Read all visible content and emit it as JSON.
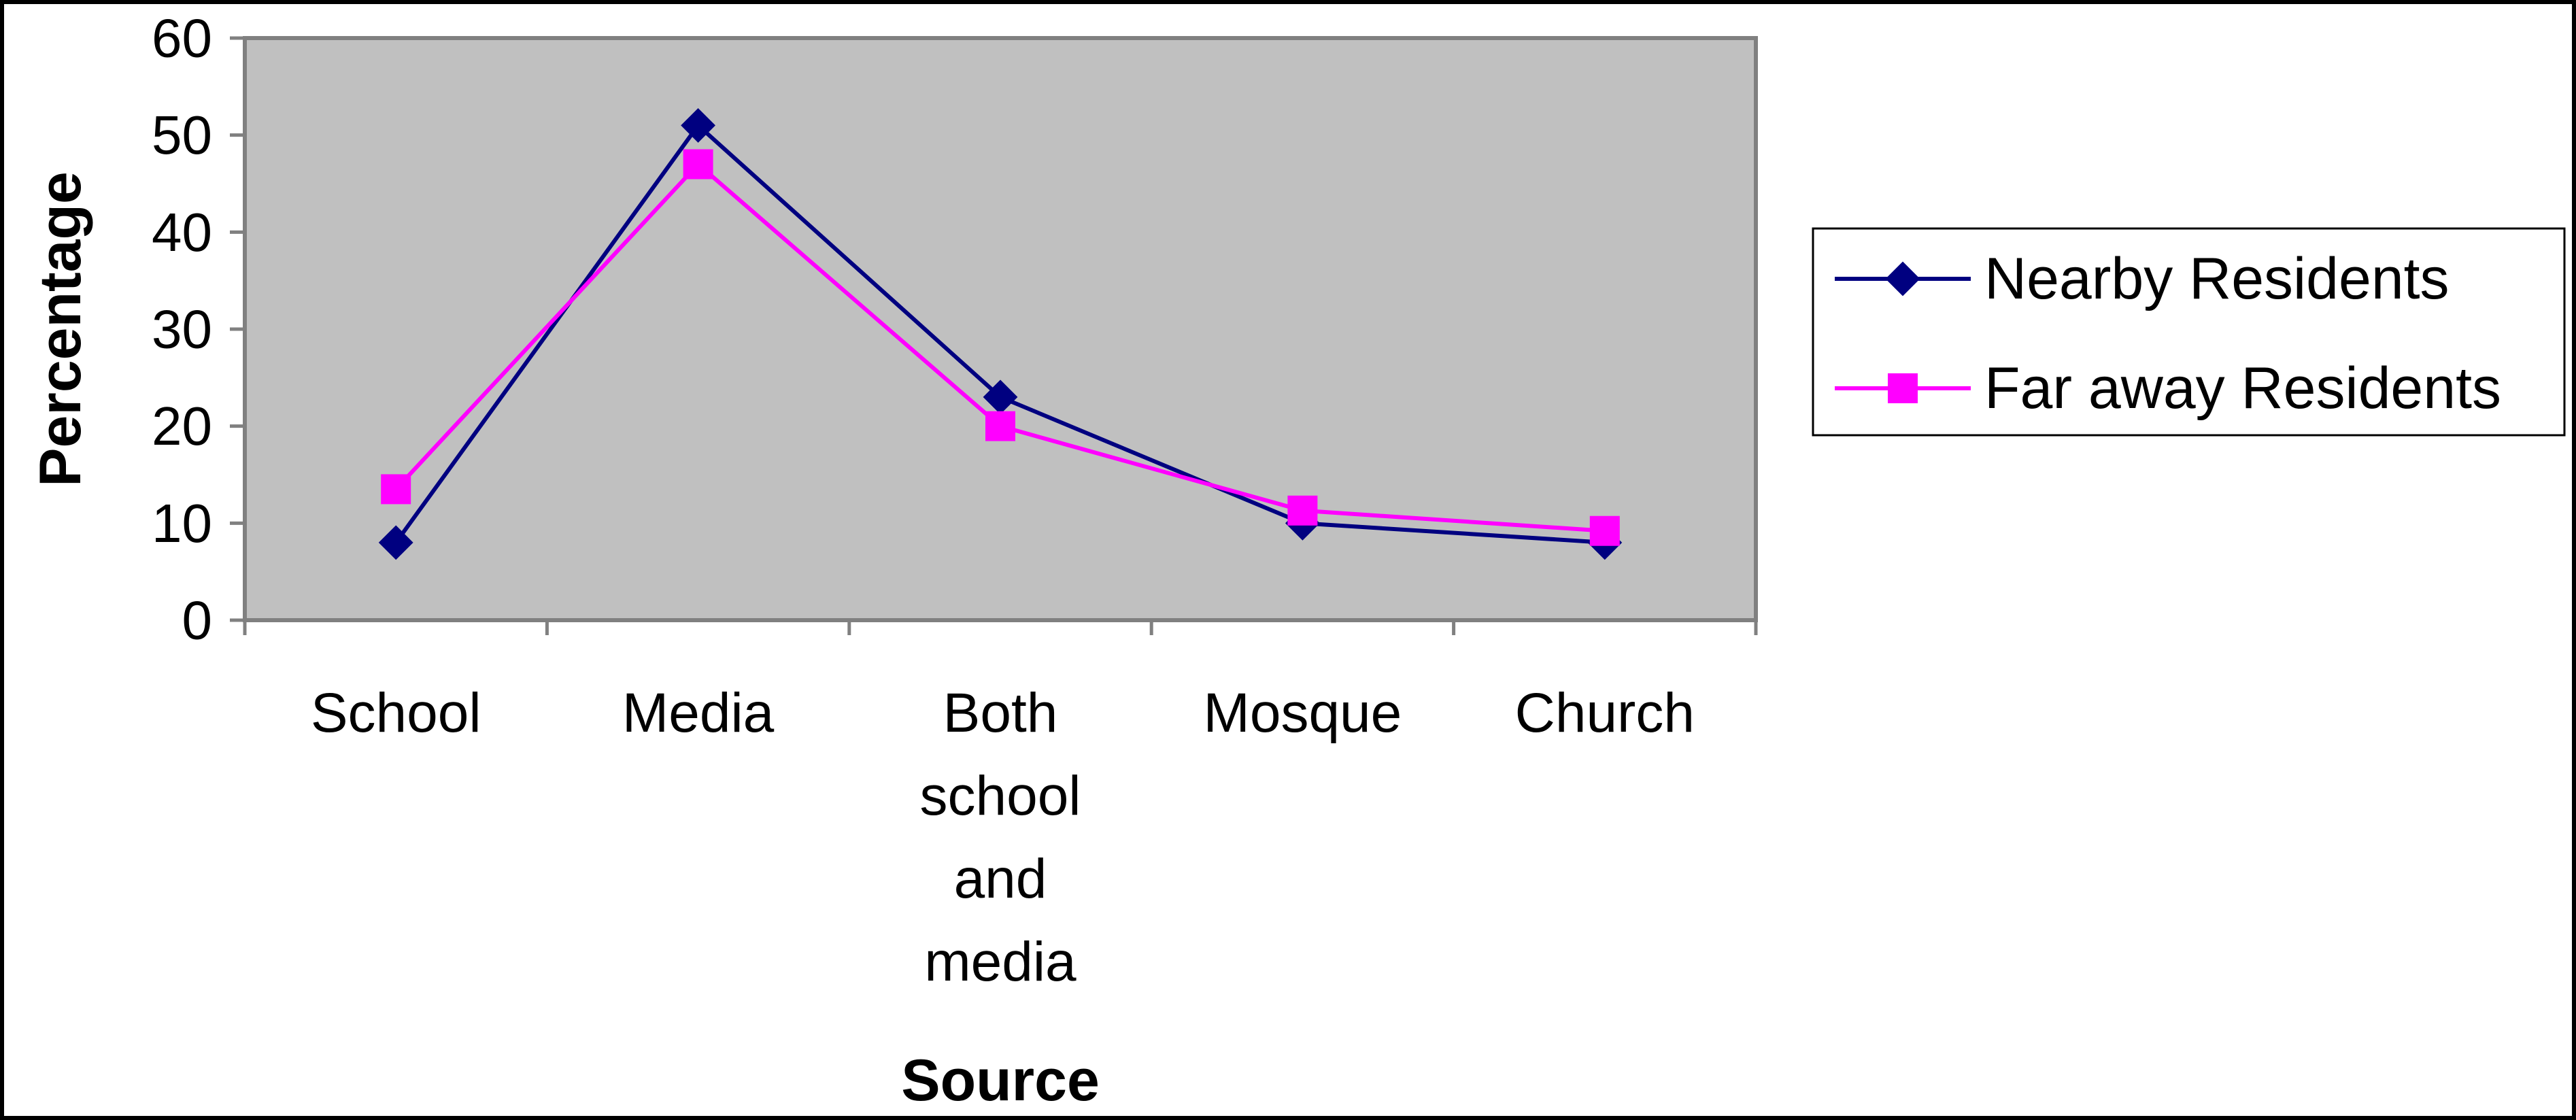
{
  "chart_data": {
    "type": "line",
    "categories": [
      "School",
      "Media",
      "Both school and media",
      "Mosque",
      "Church"
    ],
    "category_lines": [
      [
        "School"
      ],
      [
        "Media"
      ],
      [
        "Both",
        "school",
        "and",
        "media"
      ],
      [
        "Mosque"
      ],
      [
        "Church"
      ]
    ],
    "series": [
      {
        "name": "Nearby Residents",
        "values": [
          8,
          51,
          23,
          10,
          8
        ],
        "color": "#000080",
        "marker": "diamond"
      },
      {
        "name": "Far away Residents",
        "values": [
          13.5,
          47,
          20,
          11.3,
          9.2
        ],
        "color": "#FF00FF",
        "marker": "square"
      }
    ],
    "xlabel": "Source",
    "ylabel": "Percentage",
    "ylim": [
      0,
      60
    ],
    "yticks": [
      0,
      10,
      20,
      30,
      40,
      50,
      60
    ],
    "plot_background": "#C0C0C0",
    "grid": false,
    "legend_position": "right"
  }
}
